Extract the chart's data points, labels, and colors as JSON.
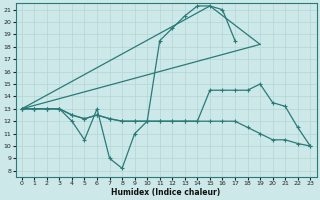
{
  "xlabel": "Humidex (Indice chaleur)",
  "bg_color": "#cce8e8",
  "line_color": "#2a7a7a",
  "grid_color": "#b8d8d8",
  "xlim": [
    -0.5,
    23.5
  ],
  "ylim": [
    7.5,
    21.5
  ],
  "xticks": [
    0,
    1,
    2,
    3,
    4,
    5,
    6,
    7,
    8,
    9,
    10,
    11,
    12,
    13,
    14,
    15,
    16,
    17,
    18,
    19,
    20,
    21,
    22,
    23
  ],
  "yticks": [
    8,
    9,
    10,
    11,
    12,
    13,
    14,
    15,
    16,
    17,
    18,
    19,
    20,
    21
  ],
  "curve_x": [
    0,
    1,
    2,
    3,
    4,
    5,
    6,
    7,
    8,
    9,
    10,
    11,
    12,
    13,
    14,
    15,
    16,
    17
  ],
  "curve_y": [
    13,
    13,
    13,
    13,
    12,
    10.5,
    13,
    9,
    8.2,
    11,
    12,
    18.5,
    19.5,
    20.5,
    21.3,
    21.3,
    21,
    18.5
  ],
  "flat_low_x": [
    0,
    1,
    2,
    3,
    4,
    5,
    6,
    7,
    8,
    9,
    10,
    11,
    12,
    13,
    14,
    15,
    16,
    17,
    18,
    19,
    20,
    21,
    22,
    23
  ],
  "flat_low_y": [
    13,
    13,
    13,
    13,
    12.5,
    12.2,
    12.5,
    12.2,
    12,
    12,
    12,
    12,
    12,
    12,
    12,
    12,
    12,
    12,
    11.5,
    11,
    10.5,
    10.5,
    10.2,
    10
  ],
  "mid_line_x": [
    0,
    1,
    2,
    3,
    4,
    5,
    6,
    7,
    8,
    9,
    10,
    11,
    12,
    13,
    14,
    15,
    16,
    17,
    18,
    19,
    20,
    21,
    22,
    23
  ],
  "mid_line_y": [
    13,
    13,
    13,
    13,
    12.5,
    12.2,
    12.5,
    12.2,
    12,
    12,
    12,
    12,
    12,
    12,
    12,
    14.5,
    14.5,
    14.5,
    14.5,
    15,
    13.5,
    13.2,
    11.5,
    10
  ],
  "tri_p1": [
    0,
    13
  ],
  "tri_p2": [
    15,
    21.3
  ],
  "tri_p3": [
    19,
    18.2
  ]
}
